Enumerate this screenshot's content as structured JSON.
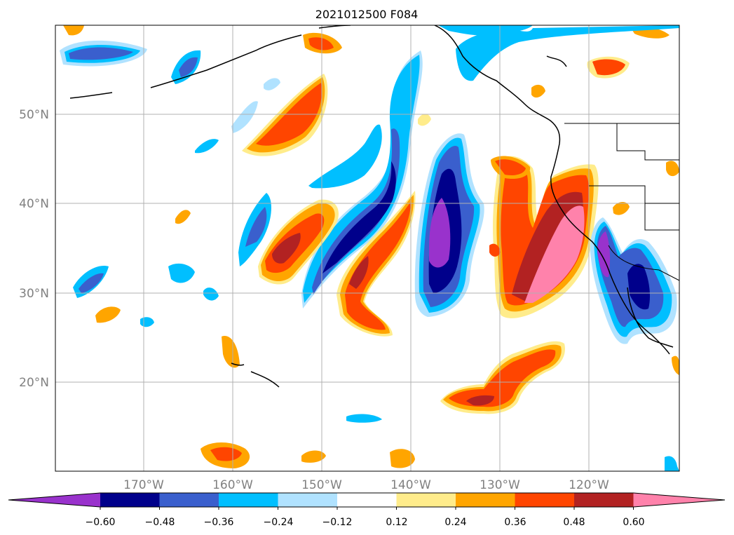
{
  "title": "2021012500 F084",
  "map": {
    "lat_ticks": [
      "50°N",
      "40°N",
      "30°N",
      "20°N"
    ],
    "lon_ticks": [
      "170°W",
      "160°W",
      "150°W",
      "140°W",
      "130°W",
      "120°W"
    ]
  },
  "colorbar": {
    "tick_labels": [
      "−0.60",
      "−0.48",
      "−0.36",
      "−0.24",
      "−0.12",
      "0.12",
      "0.24",
      "0.36",
      "0.48",
      "0.60"
    ],
    "colors": [
      "#9932CC",
      "#00008B",
      "#3A5FCD",
      "#00BFFF",
      "#B0E2FF",
      "#FFFFFF",
      "#FFEC8B",
      "#FFA500",
      "#FF4500",
      "#B22222",
      "#FF82AB"
    ],
    "extend": "both"
  }
}
